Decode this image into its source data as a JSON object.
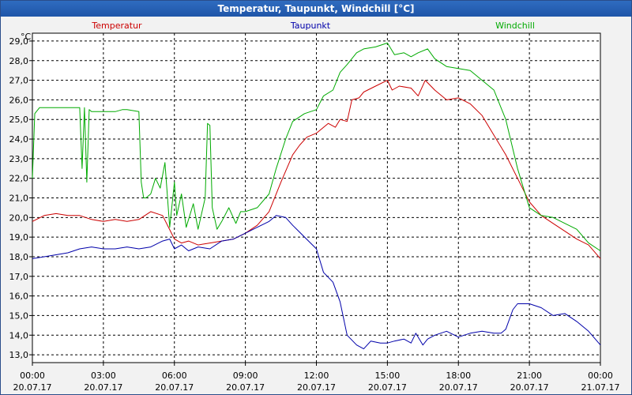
{
  "window": {
    "title": "Temperatur, Taupunkt, Windchill [°C]"
  },
  "chart_data": {
    "type": "line",
    "title": "Temperatur, Taupunkt, Windchill [°C]",
    "ylabel": "°C",
    "ylim": [
      12.6,
      29.4
    ],
    "ytick_labels": [
      "13,0",
      "14,0",
      "15,0",
      "16,0",
      "17,0",
      "18,0",
      "19,0",
      "20,0",
      "21,0",
      "22,0",
      "23,0",
      "24,0",
      "25,0",
      "26,0",
      "27,0",
      "28,0",
      "29,0"
    ],
    "xlim": [
      0,
      24
    ],
    "xticks": [
      {
        "hour": 0,
        "time": "00:00",
        "date": "20.07.17"
      },
      {
        "hour": 3,
        "time": "03:00",
        "date": "20.07.17"
      },
      {
        "hour": 6,
        "time": "06:00",
        "date": "20.07.17"
      },
      {
        "hour": 9,
        "time": "09:00",
        "date": "20.07.17"
      },
      {
        "hour": 12,
        "time": "12:00",
        "date": "20.07.17"
      },
      {
        "hour": 15,
        "time": "15:00",
        "date": "20.07.17"
      },
      {
        "hour": 18,
        "time": "18:00",
        "date": "20.07.17"
      },
      {
        "hour": 21,
        "time": "21:00",
        "date": "20.07.17"
      },
      {
        "hour": 24,
        "time": "00:00",
        "date": "21.07.17"
      }
    ],
    "grid": true,
    "series": [
      {
        "name": "Temperatur",
        "color": "#cc0000",
        "x": [
          0,
          0.5,
          1,
          1.5,
          2,
          2.5,
          3,
          3.5,
          4,
          4.5,
          5,
          5.5,
          6,
          6.3,
          6.6,
          7,
          7.5,
          8,
          8.5,
          9,
          9.5,
          10,
          10.5,
          11,
          11.3,
          11.6,
          12,
          12.5,
          12.8,
          13,
          13.3,
          13.5,
          13.8,
          14,
          14.5,
          15,
          15.2,
          15.5,
          16,
          16.3,
          16.6,
          17,
          17.5,
          18,
          18.5,
          19,
          19.5,
          20,
          20.5,
          21,
          21.5,
          22,
          22.5,
          23,
          23.5,
          24
        ],
        "y": [
          19.8,
          20.1,
          20.2,
          20.1,
          20.1,
          19.9,
          19.8,
          19.9,
          19.8,
          19.9,
          20.3,
          20.1,
          18.9,
          18.7,
          18.8,
          18.6,
          18.7,
          18.8,
          18.9,
          19.2,
          19.6,
          20.3,
          21.8,
          23.2,
          23.7,
          24.1,
          24.3,
          24.8,
          24.6,
          25.0,
          24.9,
          26.0,
          26.1,
          26.4,
          26.7,
          27.0,
          26.5,
          26.7,
          26.6,
          26.2,
          27.0,
          26.5,
          26.0,
          26.1,
          25.8,
          25.2,
          24.2,
          23.2,
          22.0,
          20.8,
          20.1,
          19.7,
          19.3,
          18.9,
          18.6,
          17.9
        ]
      },
      {
        "name": "Taupunkt",
        "color": "#0000aa",
        "x": [
          0,
          0.5,
          1,
          1.5,
          2,
          2.5,
          3,
          3.5,
          4,
          4.5,
          5,
          5.5,
          5.8,
          6,
          6.3,
          6.6,
          7,
          7.5,
          8,
          8.5,
          9,
          9.5,
          10,
          10.3,
          10.7,
          11,
          11.5,
          12,
          12.3,
          12.7,
          13,
          13.3,
          13.7,
          14,
          14.3,
          14.7,
          15,
          15.3,
          15.7,
          16,
          16.2,
          16.5,
          16.7,
          17,
          17.5,
          18,
          18.5,
          19,
          19.5,
          19.8,
          20,
          20.3,
          20.5,
          21,
          21.5,
          22,
          22.5,
          23,
          23.5,
          24
        ],
        "y": [
          17.9,
          18.0,
          18.1,
          18.2,
          18.4,
          18.5,
          18.4,
          18.4,
          18.5,
          18.4,
          18.5,
          18.8,
          18.9,
          18.4,
          18.6,
          18.3,
          18.5,
          18.4,
          18.8,
          18.9,
          19.2,
          19.5,
          19.8,
          20.1,
          20.0,
          19.6,
          19.0,
          18.4,
          17.2,
          16.7,
          15.7,
          14.0,
          13.5,
          13.3,
          13.7,
          13.6,
          13.6,
          13.7,
          13.8,
          13.6,
          14.1,
          13.5,
          13.8,
          14.0,
          14.2,
          13.9,
          14.1,
          14.2,
          14.1,
          14.1,
          14.3,
          15.3,
          15.6,
          15.6,
          15.4,
          15.0,
          15.1,
          14.7,
          14.2,
          13.5
        ]
      },
      {
        "name": "Windchill",
        "color": "#00aa00",
        "x": [
          0,
          0.1,
          0.3,
          0.6,
          1,
          1.5,
          2,
          2.1,
          2.2,
          2.3,
          2.4,
          2.5,
          2.6,
          2.7,
          3,
          3.5,
          3.8,
          4,
          4.5,
          4.6,
          4.7,
          4.8,
          5,
          5.2,
          5.4,
          5.6,
          5.8,
          6,
          6.1,
          6.3,
          6.5,
          6.8,
          7,
          7.3,
          7.4,
          7.5,
          7.6,
          7.8,
          8,
          8.3,
          8.6,
          8.8,
          9,
          9.5,
          10,
          10.3,
          10.7,
          11,
          11.5,
          12,
          12.3,
          12.7,
          13,
          13.3,
          13.7,
          14,
          14.5,
          15,
          15.3,
          15.7,
          16,
          16.3,
          16.7,
          17,
          17.5,
          18,
          18.5,
          19,
          19.5,
          20,
          20.5,
          21,
          21.5,
          22,
          22.5,
          23,
          23.5,
          24
        ],
        "y": [
          22.0,
          25.3,
          25.6,
          25.6,
          25.6,
          25.6,
          25.6,
          22.5,
          25.6,
          21.8,
          25.5,
          25.4,
          25.4,
          25.4,
          25.4,
          25.4,
          25.5,
          25.5,
          25.4,
          21.8,
          21.0,
          21.0,
          21.2,
          22.0,
          21.5,
          22.8,
          19.5,
          21.8,
          20.1,
          21.2,
          19.5,
          20.7,
          19.4,
          21.0,
          24.8,
          24.7,
          20.5,
          19.4,
          19.8,
          20.5,
          19.7,
          20.3,
          20.3,
          20.5,
          21.2,
          22.5,
          24.0,
          24.9,
          25.3,
          25.5,
          26.2,
          26.5,
          27.4,
          27.8,
          28.4,
          28.6,
          28.7,
          28.9,
          28.3,
          28.4,
          28.2,
          28.4,
          28.6,
          28.1,
          27.7,
          27.6,
          27.5,
          27.0,
          26.5,
          25.0,
          22.5,
          20.5,
          20.1,
          20.0,
          19.7,
          19.4,
          18.7,
          18.3
        ]
      }
    ]
  }
}
